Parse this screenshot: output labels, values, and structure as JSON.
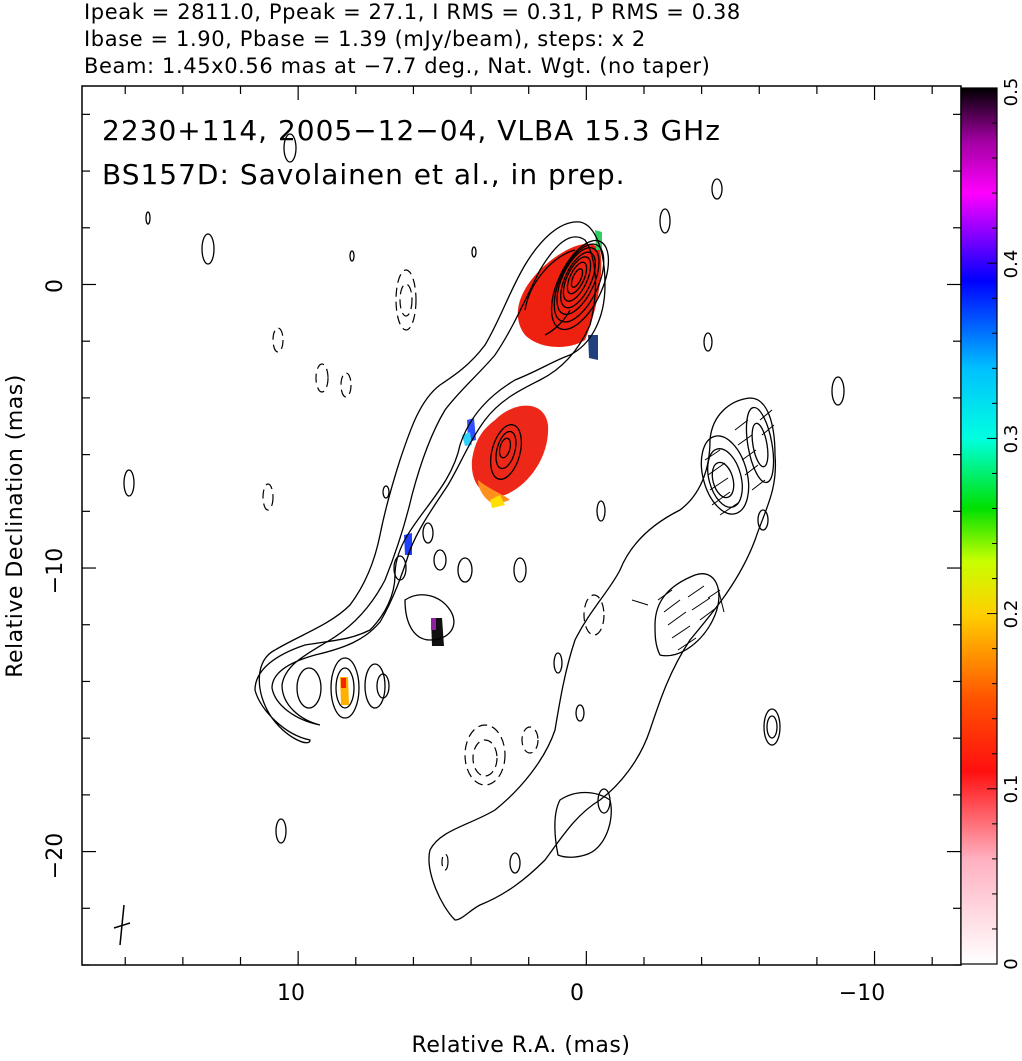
{
  "header": {
    "line1": "Ipeak = 2811.0, Ppeak = 27.1, I RMS = 0.31, P RMS = 0.38",
    "line2": "Ibase = 1.90, Pbase = 1.39 (mJy/beam), steps: x 2",
    "line3": "Beam: 1.45x0.56 mas at −7.7 deg., Nat. Wgt. (no taper)"
  },
  "annotation": {
    "line1": "2230+114, 2005−12−04, VLBA 15.3 GHz",
    "line2": "BS157D: Savolainen et al., in prep."
  },
  "chart_data": {
    "type": "heatmap",
    "xlabel": "Relative R.A. (mas)",
    "ylabel": "Relative Declination (mas)",
    "xlim": [
      17.5,
      -13
    ],
    "ylim": [
      -24,
      7
    ],
    "x_ticks": [
      10,
      0,
      -10
    ],
    "x_tick_labels": [
      "10",
      "0",
      "−10"
    ],
    "y_ticks": [
      0,
      -10,
      -20
    ],
    "y_tick_labels": [
      "0",
      "−10",
      "−20"
    ],
    "colorbar": {
      "range": [
        0,
        0.5
      ],
      "ticks": [
        0,
        0.1,
        0.2,
        0.3,
        0.4,
        0.5
      ],
      "tick_labels": [
        "0",
        "0.1",
        "0.2",
        "0.3",
        "0.4",
        "0.5"
      ],
      "colors": [
        "#ffffff",
        "#ffb6c1",
        "#ff0000",
        "#ff8c00",
        "#ffff00",
        "#00ff00",
        "#00ffff",
        "#0000ff",
        "#ff00ff",
        "#000000"
      ]
    },
    "core": {
      "x": 0,
      "y": 0
    },
    "components": [
      {
        "x": 2.5,
        "y": -6
      },
      {
        "x": 8.5,
        "y": -14.5
      },
      {
        "x": -5,
        "y": -7
      }
    ]
  }
}
